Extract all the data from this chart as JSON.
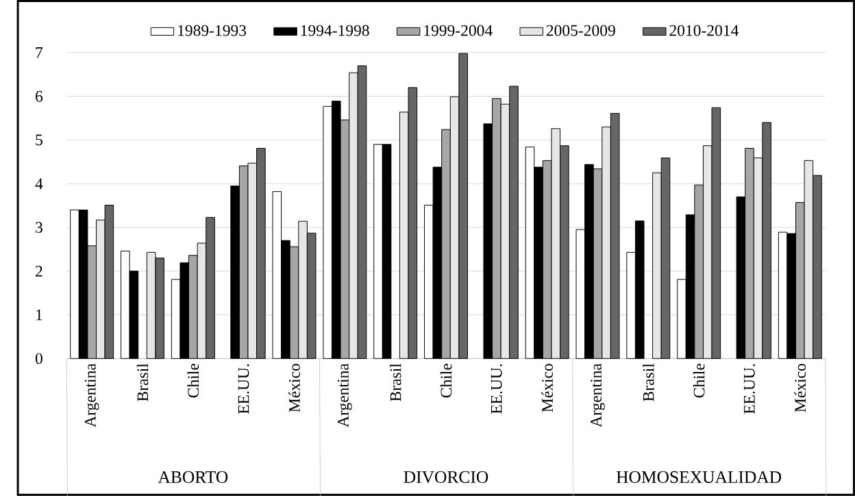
{
  "chart_data": {
    "type": "bar",
    "categories": [
      "Argentina",
      "Brasil",
      "Chile",
      "EE.UU.",
      "México",
      "Argentina",
      "Brasil",
      "Chile",
      "EE.UU.",
      "México",
      "Argentina",
      "Brasil",
      "Chile",
      "EE.UU.",
      "México"
    ],
    "annotations": [
      "ABORTO",
      "DIVORCIO",
      "HOMOSEXUALIDAD"
    ],
    "series": [
      {
        "name": "1989-1993",
        "color": "#ffffff",
        "values": [
          3.4,
          2.46,
          1.81,
          null,
          3.82,
          5.77,
          4.9,
          3.51,
          null,
          4.84,
          2.95,
          2.43,
          1.81,
          null,
          2.89
        ]
      },
      {
        "name": "1994-1998",
        "color": "#000000",
        "values": [
          3.4,
          2.0,
          2.19,
          3.95,
          2.7,
          5.89,
          4.9,
          4.38,
          5.37,
          4.38,
          4.44,
          3.15,
          3.29,
          3.7,
          2.86
        ]
      },
      {
        "name": "1999-2004",
        "color": "#a6a6a6",
        "values": [
          2.58,
          null,
          2.36,
          4.41,
          2.56,
          5.46,
          null,
          5.24,
          5.95,
          4.53,
          4.34,
          null,
          3.97,
          4.81,
          3.57
        ]
      },
      {
        "name": "2005-2009",
        "color": "#e6e6e6",
        "values": [
          3.17,
          2.43,
          2.64,
          4.47,
          3.14,
          6.54,
          5.64,
          5.99,
          5.82,
          5.26,
          5.3,
          4.25,
          4.87,
          4.59,
          4.53
        ]
      },
      {
        "name": "2010-2014",
        "color": "#666666",
        "values": [
          3.51,
          2.3,
          3.23,
          4.81,
          2.87,
          6.7,
          6.2,
          6.98,
          6.23,
          4.87,
          5.61,
          4.59,
          5.74,
          5.4,
          4.19
        ]
      }
    ],
    "ylim": [
      0,
      7
    ],
    "yticks": [
      0,
      1,
      2,
      3,
      4,
      5,
      6,
      7
    ],
    "grid": "y",
    "legend": "top"
  }
}
